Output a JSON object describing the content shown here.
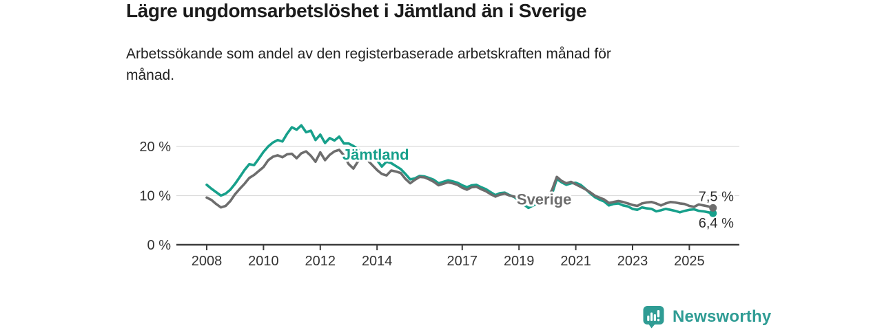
{
  "chart_data": {
    "type": "line",
    "title": "Lägre ungdomsarbetslöshet i Jämtland än i Sverige",
    "subtitle_lines": [
      "Arbetssökande som andel av den registerbaserade arbetskraften månad för",
      "månad."
    ],
    "unit": "%",
    "x_start_year": 2008,
    "x_step_years": 0.166667,
    "x_domain_years": [
      2006.93,
      2026.76
    ],
    "y_domain": [
      0,
      26
    ],
    "grid": "horizontal-only",
    "legend": "inline-series-labels",
    "x_ticks": [
      "2008",
      "2010",
      "2012",
      "2014",
      "2017",
      "2019",
      "2021",
      "2023",
      "2025"
    ],
    "x_tick_years": [
      2008,
      2010,
      2012,
      2014,
      2017,
      2019,
      2021,
      2023,
      2025
    ],
    "y_ticks": [
      {
        "value": 0,
        "label": "0 %"
      },
      {
        "value": 10,
        "label": "10 %"
      },
      {
        "value": 20,
        "label": "20 %"
      }
    ],
    "series": [
      {
        "name": "Jämtland",
        "color": "#17a08b",
        "end_label": "6,4 %",
        "end_label_position": "below",
        "label_anchor": {
          "year": 2012.78,
          "value": 17.3
        },
        "values": [
          12.2,
          11.4,
          10.7,
          10.0,
          10.4,
          11.2,
          12.4,
          13.8,
          15.2,
          16.4,
          16.2,
          17.5,
          18.9,
          20.0,
          20.8,
          21.3,
          21.0,
          22.6,
          23.9,
          23.4,
          24.3,
          22.9,
          23.2,
          21.3,
          22.4,
          20.7,
          21.7,
          21.2,
          22.0,
          20.6,
          20.6,
          20.1,
          19.4,
          18.6,
          17.8,
          17.4,
          17.2,
          15.9,
          16.9,
          16.6,
          16.0,
          15.4,
          14.4,
          13.3,
          13.5,
          14.0,
          13.9,
          13.6,
          13.2,
          12.5,
          12.8,
          13.1,
          12.9,
          12.6,
          12.1,
          11.7,
          12.1,
          12.2,
          11.7,
          11.3,
          10.7,
          10.1,
          10.5,
          10.6,
          10.1,
          9.7,
          9.0,
          8.2,
          7.5,
          8.0,
          8.4,
          8.6,
          8.9,
          10.4,
          13.4,
          12.7,
          12.2,
          12.5,
          12.6,
          12.2,
          11.4,
          10.5,
          9.7,
          9.2,
          8.8,
          8.0,
          8.3,
          8.4,
          8.0,
          7.8,
          7.3,
          7.1,
          7.6,
          7.4,
          7.3,
          6.8,
          7.0,
          7.3,
          7.1,
          6.9,
          6.6,
          6.9,
          7.1,
          7.2,
          6.9,
          6.8,
          6.6,
          6.4
        ]
      },
      {
        "name": "Sverige",
        "color": "#6d6d6d",
        "end_label": "7,5 %",
        "end_label_position": "above",
        "label_anchor": {
          "year": 2018.92,
          "value": 8.2
        },
        "values": [
          9.6,
          9.1,
          8.3,
          7.6,
          7.9,
          8.9,
          10.3,
          11.4,
          12.4,
          13.6,
          14.2,
          15.0,
          15.8,
          17.2,
          17.9,
          18.2,
          17.8,
          18.4,
          18.5,
          17.6,
          18.6,
          19.0,
          18.1,
          16.9,
          18.8,
          17.2,
          18.3,
          19.0,
          19.3,
          18.2,
          16.4,
          15.5,
          17.0,
          17.5,
          17.2,
          16.2,
          15.2,
          14.4,
          14.1,
          15.1,
          14.9,
          14.6,
          13.4,
          12.5,
          13.2,
          13.8,
          13.7,
          13.3,
          12.8,
          12.1,
          12.4,
          12.7,
          12.5,
          12.2,
          11.6,
          11.2,
          11.7,
          11.8,
          11.3,
          10.9,
          10.3,
          9.8,
          10.2,
          10.4,
          10.0,
          9.8,
          9.4,
          9.0,
          9.2,
          9.3,
          9.0,
          9.1,
          9.4,
          11.2,
          13.8,
          13.0,
          12.5,
          12.8,
          12.3,
          11.8,
          11.3,
          10.7,
          10.0,
          9.6,
          9.2,
          8.5,
          8.7,
          8.9,
          8.7,
          8.4,
          8.1,
          7.9,
          8.4,
          8.6,
          8.7,
          8.4,
          8.0,
          8.4,
          8.7,
          8.6,
          8.4,
          8.3,
          7.9,
          7.7,
          8.2,
          8.0,
          7.8,
          7.5
        ]
      }
    ]
  },
  "colors": {
    "accent_teal": "#17a08b",
    "line_gray": "#6d6d6d",
    "axis": "#3c3c3c",
    "gridline": "#dcdcdc",
    "tick_text": "#333333",
    "end_label_text": "#2e2e2e",
    "brand_teal": "#2f9c94"
  },
  "footer": {
    "brand": "Newsworthy"
  }
}
